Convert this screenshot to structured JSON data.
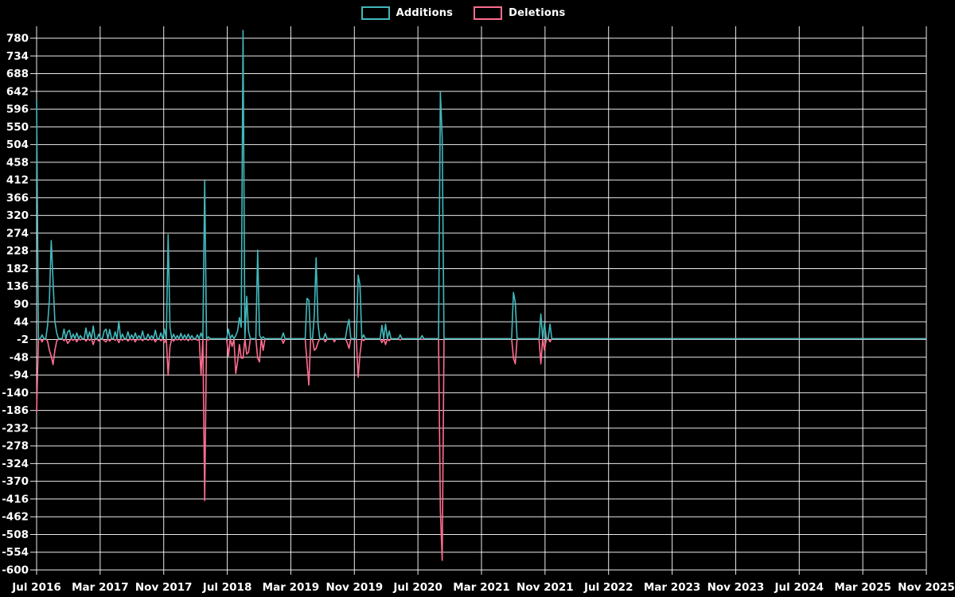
{
  "page": {
    "background": "#000000",
    "accent_additions": "#42b8bc",
    "accent_deletions": "#ff6d8e"
  },
  "chart_data": {
    "type": "line",
    "title": "",
    "legend_position": "top-center",
    "grid": true,
    "background": "#000000",
    "grid_color": "#ffffff",
    "text_color": "#ffffff",
    "series": [
      {
        "name": "Additions",
        "color": "#42b8bc"
      },
      {
        "name": "Deletions",
        "color": "#ff6d8e"
      }
    ],
    "x_axis": {
      "tick_labels": [
        "Jul 2016",
        "Mar 2017",
        "Nov 2017",
        "Jul 2018",
        "Mar 2019",
        "Nov 2019",
        "Jul 2020",
        "Mar 2021",
        "Nov 2021",
        "Jul 2022",
        "Mar 2023",
        "Nov 2023",
        "Jul 2024",
        "Mar 2025",
        "Nov 2025"
      ],
      "months_per_tick": 8,
      "start": "Jul 2016",
      "end": "Nov 2025",
      "total_weeks": 488
    },
    "y_axis": {
      "min": -600,
      "max": 780,
      "tick_step": 46,
      "ticks": [
        780,
        734,
        688,
        642,
        596,
        550,
        504,
        458,
        412,
        366,
        320,
        274,
        228,
        182,
        136,
        90,
        44,
        -2,
        -48,
        -94,
        -140,
        -186,
        -232,
        -278,
        -324,
        -370,
        -416,
        -462,
        -508,
        -554,
        -600
      ]
    },
    "baseline": 0,
    "points_format": [
      "week_index",
      "additions",
      "deletions"
    ],
    "points": [
      [
        0,
        620,
        -190
      ],
      [
        3,
        10,
        -8
      ],
      [
        6,
        35,
        -6
      ],
      [
        7,
        100,
        -30
      ],
      [
        8,
        255,
        -45
      ],
      [
        9,
        150,
        -67
      ],
      [
        10,
        45,
        -30
      ],
      [
        11,
        15,
        -6
      ],
      [
        15,
        25,
        -5
      ],
      [
        17,
        18,
        -12
      ],
      [
        18,
        22,
        -6
      ],
      [
        20,
        12,
        -4
      ],
      [
        22,
        15,
        -8
      ],
      [
        24,
        8,
        -3
      ],
      [
        27,
        28,
        -6
      ],
      [
        29,
        18,
        -4
      ],
      [
        31,
        33,
        -15
      ],
      [
        34,
        12,
        -6
      ],
      [
        37,
        20,
        -5
      ],
      [
        38,
        25,
        -8
      ],
      [
        40,
        24,
        -6
      ],
      [
        43,
        18,
        -4
      ],
      [
        45,
        45,
        -10
      ],
      [
        47,
        12,
        -4
      ],
      [
        50,
        18,
        -6
      ],
      [
        52,
        10,
        -3
      ],
      [
        54,
        15,
        -8
      ],
      [
        56,
        8,
        -3
      ],
      [
        58,
        20,
        -5
      ],
      [
        61,
        12,
        -4
      ],
      [
        63,
        8,
        -3
      ],
      [
        65,
        22,
        -8
      ],
      [
        68,
        15,
        -5
      ],
      [
        70,
        25,
        -10
      ],
      [
        72,
        270,
        -95
      ],
      [
        73,
        30,
        -20
      ],
      [
        75,
        12,
        -6
      ],
      [
        77,
        8,
        -3
      ],
      [
        79,
        14,
        -4
      ],
      [
        81,
        10,
        -3
      ],
      [
        83,
        12,
        -5
      ],
      [
        85,
        8,
        -3
      ],
      [
        88,
        10,
        -4
      ],
      [
        90,
        15,
        -95
      ],
      [
        92,
        410,
        -420
      ],
      [
        94,
        5,
        -3
      ],
      [
        105,
        25,
        -45
      ],
      [
        107,
        10,
        -20
      ],
      [
        109,
        8,
        -90
      ],
      [
        110,
        20,
        -60
      ],
      [
        111,
        55,
        -15
      ],
      [
        112,
        30,
        -50
      ],
      [
        113,
        800,
        -50
      ],
      [
        115,
        110,
        -40
      ],
      [
        116,
        20,
        -35
      ],
      [
        121,
        230,
        -50
      ],
      [
        122,
        10,
        -60
      ],
      [
        124,
        5,
        -30
      ],
      [
        135,
        15,
        -12
      ],
      [
        148,
        105,
        -60
      ],
      [
        149,
        100,
        -120
      ],
      [
        152,
        60,
        -30
      ],
      [
        153,
        210,
        -25
      ],
      [
        154,
        40,
        -10
      ],
      [
        158,
        14,
        -8
      ],
      [
        163,
        0,
        -8
      ],
      [
        170,
        30,
        -10
      ],
      [
        171,
        50,
        -25
      ],
      [
        176,
        165,
        -100
      ],
      [
        177,
        140,
        -40
      ],
      [
        179,
        10,
        -5
      ],
      [
        189,
        35,
        -10
      ],
      [
        191,
        38,
        -15
      ],
      [
        193,
        20,
        -5
      ],
      [
        199,
        10,
        -3
      ],
      [
        211,
        8,
        -2
      ],
      [
        221,
        640,
        -445
      ],
      [
        222,
        520,
        -575
      ],
      [
        261,
        120,
        -50
      ],
      [
        262,
        95,
        -65
      ],
      [
        276,
        64,
        -65
      ],
      [
        278,
        40,
        -30
      ],
      [
        281,
        38,
        -8
      ]
    ]
  }
}
